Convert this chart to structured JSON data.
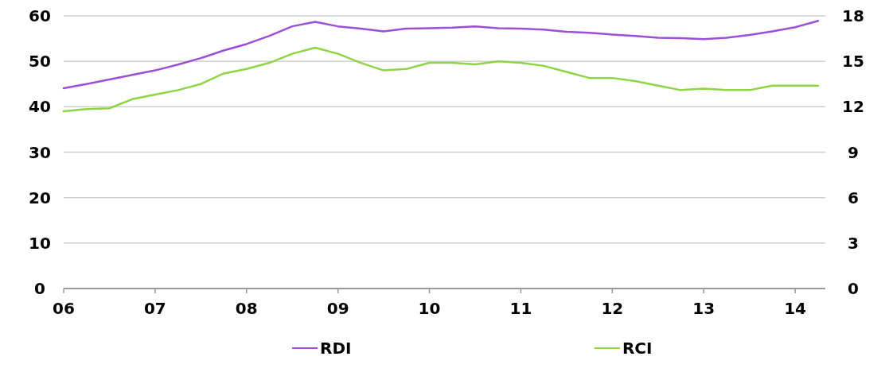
{
  "chart_data": {
    "type": "line",
    "x": [
      2006,
      2006.25,
      2006.5,
      2006.75,
      2007,
      2007.25,
      2007.5,
      2007.75,
      2008,
      2008.25,
      2008.5,
      2008.75,
      2009,
      2009.25,
      2009.5,
      2009.75,
      2010,
      2010.25,
      2010.5,
      2010.75,
      2011,
      2011.25,
      2011.5,
      2011.75,
      2012,
      2012.25,
      2012.5,
      2012.75,
      2013,
      2013.25,
      2013.5,
      2013.75,
      2014,
      2014.25
    ],
    "series": [
      {
        "name": "RDI",
        "color": "#9b4fd6",
        "values": [
          44.1,
          45,
          46,
          47,
          48,
          49.3,
          50.7,
          52.4,
          53.8,
          55.6,
          57.7,
          58.7,
          57.7,
          57.2,
          56.6,
          57.2,
          57.3,
          57.4,
          57.7,
          57.3,
          57.2,
          57,
          56.5,
          56.3,
          55.9,
          55.6,
          55.2,
          55.1,
          54.9,
          55.2,
          55.8,
          56.6,
          57.5,
          58.9
        ]
      },
      {
        "name": "RCI",
        "color": "#8ed444",
        "axis": "y2",
        "values": [
          11.7,
          11.85,
          11.9,
          12.5,
          12.8,
          13.1,
          13.5,
          14.2,
          14.5,
          14.9,
          15.5,
          15.9,
          15.5,
          14.9,
          14.4,
          14.5,
          14.9,
          14.9,
          14.8,
          15,
          14.9,
          14.7,
          14.3,
          13.9,
          13.9,
          13.7,
          13.4,
          13.1,
          13.2,
          13.1,
          13.1,
          13.4,
          13.4,
          13.4
        ]
      }
    ],
    "xlim": [
      2006,
      2014.33
    ],
    "xticks": [
      {
        "value": 2006,
        "label": "06"
      },
      {
        "value": 2007,
        "label": "07"
      },
      {
        "value": 2008,
        "label": "08"
      },
      {
        "value": 2009,
        "label": "09"
      },
      {
        "value": 2010,
        "label": "10"
      },
      {
        "value": 2011,
        "label": "11"
      },
      {
        "value": 2012,
        "label": "12"
      },
      {
        "value": 2013,
        "label": "13"
      },
      {
        "value": 2014,
        "label": "14"
      }
    ],
    "ylim": [
      0,
      60
    ],
    "yticks": [
      0,
      10,
      20,
      30,
      40,
      50,
      60
    ],
    "y2lim": [
      0,
      18
    ],
    "y2ticks": [
      0,
      3,
      6,
      9,
      12,
      15,
      18
    ],
    "grid": "y",
    "legend": "bottom",
    "line_style": "solid",
    "marker": "none"
  }
}
